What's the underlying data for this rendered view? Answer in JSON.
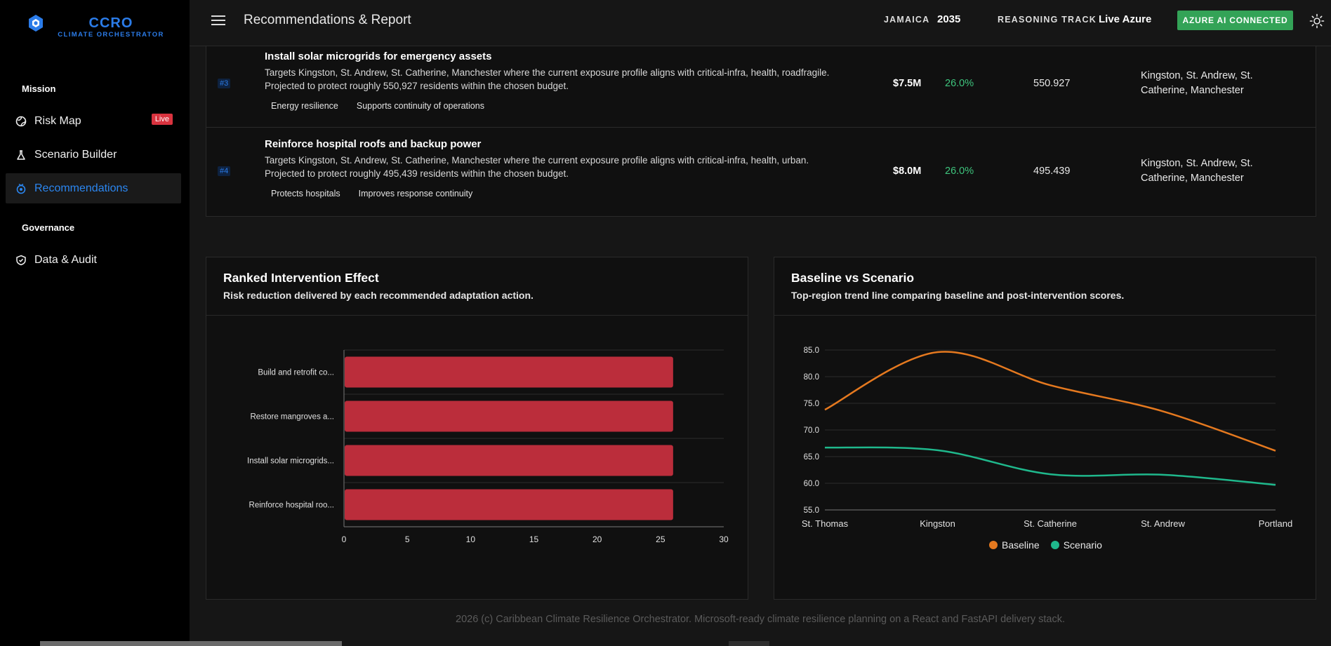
{
  "brand": {
    "title": "CCRO",
    "subtitle": "CLIMATE ORCHESTRATOR"
  },
  "sidebar": {
    "sections": [
      {
        "label": "Mission"
      },
      {
        "label": "Governance"
      }
    ],
    "items": [
      {
        "label": "Risk Map",
        "icon": "globe-icon",
        "badge": "Live"
      },
      {
        "label": "Scenario Builder",
        "icon": "flask-icon"
      },
      {
        "label": "Recommendations",
        "icon": "target-icon",
        "active": true
      },
      {
        "label": "Data & Audit",
        "icon": "shield-check-icon"
      }
    ]
  },
  "header": {
    "title": "Recommendations & Report",
    "country_label": "JAMAICA",
    "year": "2035",
    "reasoning_label": "REASONING TRACK",
    "reasoning_value": "Live Azure",
    "status_button": "AZURE AI CONNECTED"
  },
  "table": {
    "rows": [
      {
        "rank": "#3",
        "title": "Install solar microgrids for emergency assets",
        "desc_line1": "Targets Kingston, St. Andrew, St. Catherine, Manchester where the current exposure profile aligns with critical-infra, health, roadfragile.",
        "desc_line2": "Projected to protect roughly 550,927 residents within the chosen budget.",
        "tags": [
          "Energy resilience",
          "Supports continuity of operations"
        ],
        "cost": "$7.5M",
        "reduction": "26.0%",
        "protected": "550.927",
        "regions": "Kingston, St. Andrew, St. Catherine, Manchester"
      },
      {
        "rank": "#4",
        "title": "Reinforce hospital roofs and backup power",
        "desc_line1": "Targets Kingston, St. Andrew, St. Catherine, Manchester where the current exposure profile aligns with critical-infra, health, urban.",
        "desc_line2": "Projected to protect roughly 495,439 residents within the chosen budget.",
        "tags": [
          "Protects hospitals",
          "Improves response continuity"
        ],
        "cost": "$8.0M",
        "reduction": "26.0%",
        "protected": "495.439",
        "regions": "Kingston, St. Andrew, St. Catherine, Manchester"
      }
    ]
  },
  "cards": {
    "ranked": {
      "title": "Ranked Intervention Effect",
      "subtitle": "Risk reduction delivered by each recommended adaptation action."
    },
    "baseline": {
      "title": "Baseline vs Scenario",
      "subtitle": "Top-region trend line comparing baseline and post-intervention scores."
    }
  },
  "chart_data": [
    {
      "type": "bar",
      "orientation": "horizontal",
      "categories": [
        "Build and retrofit co...",
        "Restore mangroves a...",
        "Install solar microgrids...",
        "Reinforce hospital roo..."
      ],
      "values": [
        26,
        26,
        26,
        26
      ],
      "xlim": [
        0,
        30
      ],
      "xticks": [
        0,
        5,
        10,
        15,
        20,
        25,
        30
      ],
      "color": "#bb2d3b",
      "grid": true
    },
    {
      "type": "line",
      "x": [
        "St. Thomas",
        "Kingston",
        "St. Catherine",
        "St. Andrew",
        "Portland"
      ],
      "series": [
        {
          "name": "Baseline",
          "values": [
            73.8,
            84.6,
            78.4,
            73.5,
            66.1
          ],
          "color": "#e5791f"
        },
        {
          "name": "Scenario",
          "values": [
            66.7,
            66.2,
            61.7,
            61.6,
            59.7
          ],
          "color": "#1fb88c"
        }
      ],
      "ylim": [
        55,
        85
      ],
      "yticks": [
        "55.0",
        "60.0",
        "65.0",
        "70.0",
        "75.0",
        "80.0",
        "85.0"
      ],
      "grid": true,
      "legend": "bottom"
    }
  ],
  "footer": "2026 (c) Caribbean Climate Resilience Orchestrator. Microsoft-ready climate resilience planning on a React and FastAPI delivery stack."
}
